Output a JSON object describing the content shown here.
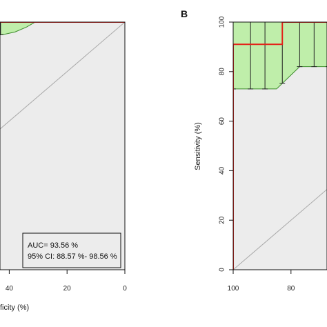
{
  "colors": {
    "plot_background": "#ececec",
    "roc_line": "#e3241b",
    "ci_fill": "#bfeeaa",
    "ci_outline": "#3a8a2a",
    "ci_bars": "#222222",
    "diagonal": "#a9a9a9",
    "frame": "#111111"
  },
  "chart_data": [
    {
      "type": "line",
      "panel": "A",
      "panel_label_visible": false,
      "xlabel": "Specificity (%)",
      "xlabel_visible_text": "ficity (%)",
      "ylabel": "",
      "x_reversed": true,
      "xlim": [
        100,
        0
      ],
      "ylim": [
        0,
        100
      ],
      "x_tick_labels": [
        "40",
        "20",
        "0"
      ],
      "x_ticks": [
        40,
        20,
        0
      ],
      "grid": false,
      "series": [
        {
          "kind": "roc",
          "points": [
            [
              100,
              91
            ],
            [
              95,
              93
            ],
            [
              92,
              94
            ],
            [
              90,
              95
            ],
            [
              88,
              97
            ],
            [
              86,
              97
            ],
            [
              84,
              98
            ],
            [
              80,
              98
            ],
            [
              76,
              99
            ],
            [
              72,
              99.5
            ],
            [
              60,
              100
            ],
            [
              0,
              100
            ]
          ]
        },
        {
          "kind": "ci_upper",
          "points": [
            [
              100,
              100
            ],
            [
              0,
              100
            ]
          ]
        },
        {
          "kind": "ci_lower",
          "points": [
            [
              100,
              88
            ],
            [
              96,
              90
            ],
            [
              93,
              91
            ],
            [
              90,
              92
            ],
            [
              80,
              94
            ],
            [
              70,
              94
            ],
            [
              60,
              94
            ],
            [
              50,
              94
            ],
            [
              42,
              95
            ],
            [
              38,
              96
            ],
            [
              34,
              98
            ],
            [
              31,
              100
            ],
            [
              0,
              100
            ]
          ]
        }
      ],
      "ci_bar_x": [
        62,
        55,
        43,
        31
      ],
      "annotation": {
        "auc": "AUC= 93.56 %",
        "ci": "95% CI: 88.57 %- 98.56 %"
      }
    },
    {
      "type": "line",
      "panel": "B",
      "panel_label": "B",
      "xlabel": "",
      "ylabel": "Sensitivity (%)",
      "x_reversed": true,
      "xlim": [
        100,
        0
      ],
      "ylim": [
        0,
        100
      ],
      "x_tick_labels": [
        "100",
        "80"
      ],
      "x_ticks": [
        100,
        80
      ],
      "y_tick_labels": [
        "0",
        "20",
        "40",
        "60",
        "80",
        "100"
      ],
      "y_ticks": [
        0,
        20,
        40,
        60,
        80,
        100
      ],
      "grid": false,
      "series": [
        {
          "kind": "roc",
          "points": [
            [
              100,
              0
            ],
            [
              100,
              91
            ],
            [
              83,
              91
            ],
            [
              83,
              100
            ],
            [
              0,
              100
            ]
          ]
        },
        {
          "kind": "ci_upper",
          "points": [
            [
              100,
              100
            ],
            [
              0,
              100
            ]
          ]
        },
        {
          "kind": "ci_lower",
          "points": [
            [
              100,
              73
            ],
            [
              85,
              73
            ],
            [
              77,
              82
            ],
            [
              67,
              82
            ],
            [
              62,
              91
            ],
            [
              56,
              91
            ],
            [
              50,
              93
            ]
          ]
        }
      ],
      "ci_bar_x": [
        100,
        94,
        89,
        83,
        77,
        72,
        67,
        62,
        58
      ]
    }
  ]
}
